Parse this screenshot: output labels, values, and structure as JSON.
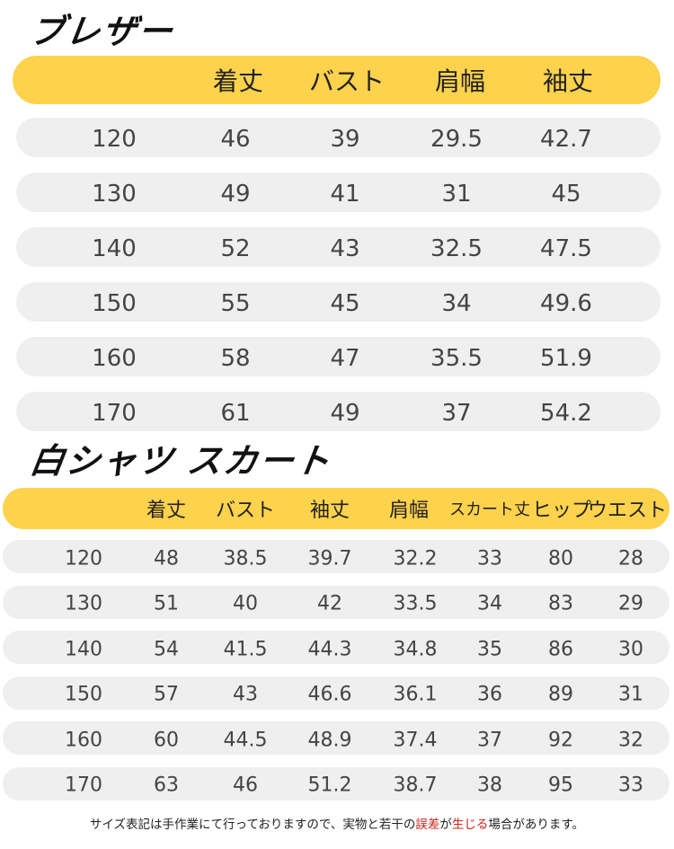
{
  "tables": [
    {
      "title": "ブレザー",
      "header": [
        "着丈",
        "バスト",
        "肩幅",
        "袖丈"
      ],
      "rows": [
        [
          120,
          46,
          39,
          29.5,
          42.7
        ],
        [
          130,
          49,
          41,
          31,
          45
        ],
        [
          140,
          52,
          43,
          32.5,
          47.5
        ],
        [
          150,
          55,
          45,
          34,
          49.6
        ],
        [
          160,
          58,
          47,
          35.5,
          51.9
        ],
        [
          170,
          61,
          49,
          37,
          54.2
        ]
      ]
    },
    {
      "title": "白シャツ スカート",
      "header": [
        "着丈",
        "バスト",
        "袖丈",
        "肩幅",
        "スカート丈",
        "ヒップ",
        "ウエスト"
      ],
      "rows": [
        [
          120,
          48,
          38.5,
          39.7,
          32.2,
          33,
          80,
          28
        ],
        [
          130,
          51,
          40,
          42,
          33.5,
          34,
          83,
          29
        ],
        [
          140,
          54,
          41.5,
          44.3,
          34.8,
          35,
          86,
          30
        ],
        [
          150,
          57,
          43,
          46.6,
          36.1,
          36,
          89,
          31
        ],
        [
          160,
          60,
          44.5,
          48.9,
          37.4,
          37,
          92,
          32
        ],
        [
          170,
          63,
          46,
          51.2,
          38.7,
          38,
          95,
          33
        ]
      ]
    }
  ],
  "note": [
    {
      "text": "サイズ表記は手作業にて行っておりますので、実物と若干の",
      "color": "#222222"
    },
    {
      "text": "誤差",
      "color": "#d0201a"
    },
    {
      "text": "が",
      "color": "#222222"
    },
    {
      "text": "生じる",
      "color": "#d0201a"
    },
    {
      "text": "場合があります。",
      "color": "#222222"
    }
  ]
}
